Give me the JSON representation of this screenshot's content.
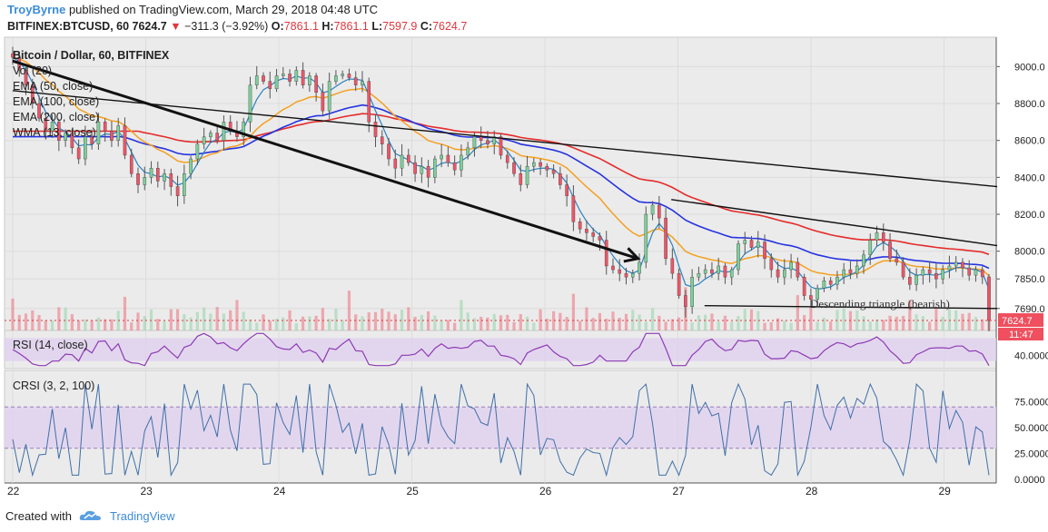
{
  "header": {
    "author": "TroyByrne",
    "published_text": "published on TradingView.com, March 29, 2018 04:48 UTC",
    "symbol": "BITFINEX:BTCUSD, 60",
    "last": "7624.7",
    "arrow": "▼",
    "change": "−311.3 (−3.92%)",
    "o_label": "O:",
    "o": "7861.1",
    "h_label": "H:",
    "h": "7861.1",
    "l_label": "L:",
    "l": "7597.9",
    "c_label": "C:",
    "c": "7624.7"
  },
  "footer": {
    "created_with": "Created with",
    "brand": "TradingView"
  },
  "colors": {
    "up": "#7ecf9a",
    "down": "#ef5466",
    "ema50": "#f4a020",
    "ema100": "#2633e0",
    "ema200": "#e52b2b",
    "wma": "#2b82c0",
    "rsi": "#8e3ab5",
    "crsi": "#3f6fa8",
    "pane_bg": "#ebebeb",
    "band": "#e0d1ef"
  },
  "chart_data": {
    "type": "candlestick",
    "title": "Bitcoin / Dollar, 60, BITFINEX",
    "indicators": [
      "Vol (20)",
      "EMA (50, close)",
      "EMA (100, close)",
      "EMA (200, close)",
      "WMA (13, close)"
    ],
    "y_ticks": [
      "9000.0",
      "8800.0",
      "8600.0",
      "8400.0",
      "8200.0",
      "8000.0",
      "7850.0",
      "7690.0"
    ],
    "y_range": [
      7620,
      9100
    ],
    "x_ticks": [
      "22",
      "23",
      "24",
      "25",
      "26",
      "27",
      "28",
      "29"
    ],
    "price_label": "7624.7",
    "countdown_label": "11:47",
    "annotation": "Descending triangle (bearish)",
    "closes": [
      9050,
      8980,
      8900,
      8800,
      8720,
      8650,
      8700,
      8600,
      8640,
      8560,
      8500,
      8620,
      8580,
      8700,
      8650,
      8600,
      8680,
      8520,
      8420,
      8360,
      8400,
      8450,
      8380,
      8420,
      8350,
      8300,
      8420,
      8500,
      8580,
      8620,
      8640,
      8600,
      8700,
      8650,
      8620,
      8700,
      8900,
      8950,
      8920,
      8880,
      8950,
      8960,
      8920,
      8980,
      8900,
      8950,
      8860,
      8760,
      8920,
      8950,
      8960,
      8940,
      8900,
      8920,
      8700,
      8620,
      8580,
      8500,
      8450,
      8520,
      8480,
      8420,
      8460,
      8400,
      8500,
      8520,
      8480,
      8440,
      8520,
      8560,
      8620,
      8600,
      8580,
      8620,
      8520,
      8480,
      8420,
      8360,
      8460,
      8480,
      8460,
      8440,
      8420,
      8360,
      8300,
      8160,
      8120,
      8100,
      8080,
      8060,
      7920,
      7900,
      7880,
      7860,
      7880,
      7940,
      8200,
      8250,
      8180,
      7960,
      7880,
      7760,
      7700,
      7860,
      7880,
      7900,
      7880,
      7920,
      7860,
      7900,
      8040,
      8060,
      8020,
      8050,
      7960,
      7900,
      7860,
      7900,
      7940,
      7860,
      7760,
      7740,
      7800,
      7840,
      7820,
      7860,
      7900,
      7880,
      7920,
      7980,
      8060,
      8100,
      8050,
      7960,
      7940,
      7860,
      7820,
      7870,
      7900,
      7880,
      7850,
      7900,
      7920,
      7940,
      7910,
      7870,
      7900,
      7861,
      7624.7
    ],
    "price_lines": [
      {
        "name": "descending-trend-arrow",
        "from": [
          "22",
          9030
        ],
        "to": [
          "26.7",
          7960
        ]
      },
      {
        "name": "upper-resistance-long",
        "from": [
          "22",
          8870
        ],
        "to": [
          "29.4",
          8350
        ]
      },
      {
        "name": "triangle-upper",
        "from": [
          "26.95",
          8280
        ],
        "to": [
          "29.4",
          8030
        ]
      },
      {
        "name": "triangle-support",
        "from": [
          "27.2",
          7705
        ],
        "to": [
          "29.4",
          7690
        ]
      }
    ],
    "rsi": {
      "label": "RSI (14, close)",
      "tick": "40.0000",
      "range": [
        20,
        80
      ],
      "bands": [
        30,
        70
      ]
    },
    "crsi": {
      "label": "CRSI (3, 2, 100)",
      "ticks": [
        "75.0000",
        "50.0000",
        "25.0000",
        "0.0000"
      ],
      "range": [
        0,
        100
      ],
      "bands": [
        30,
        70
      ]
    }
  }
}
